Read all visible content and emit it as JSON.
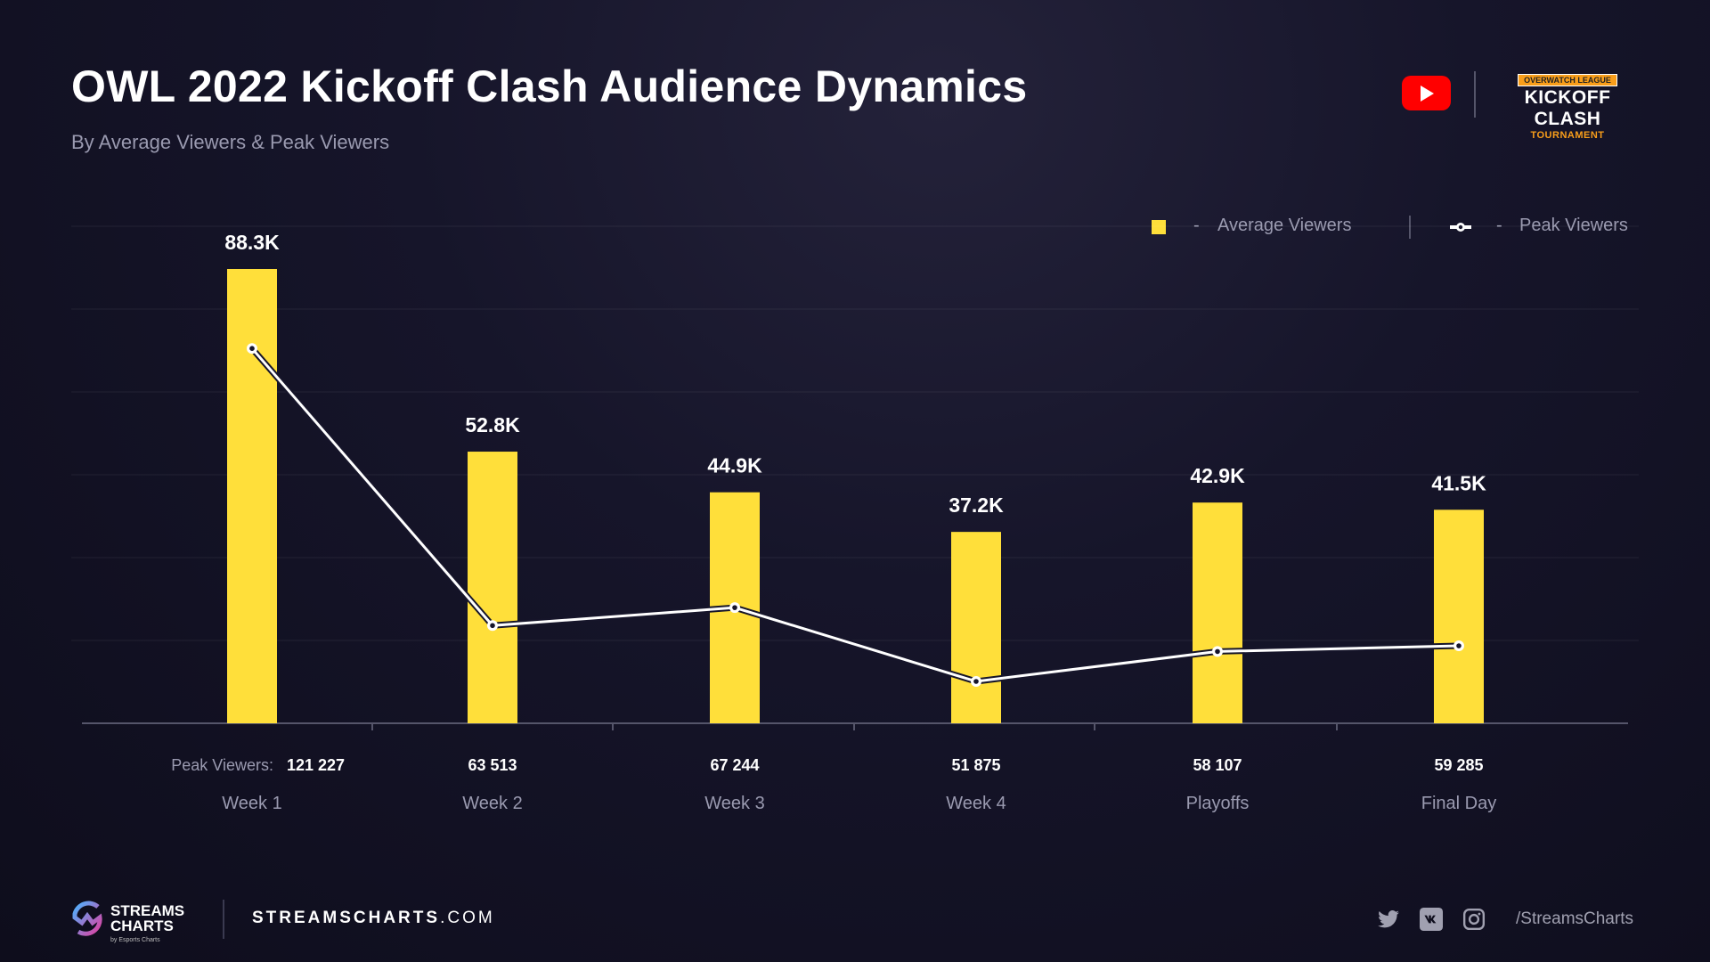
{
  "header": {
    "title": "OWL 2022 Kickoff Clash Audience Dynamics",
    "subtitle": "By Average Viewers & Peak Viewers",
    "platform_icon": "youtube-icon",
    "event_logo": {
      "top": "OVERWATCH LEAGUE",
      "main": "KICKOFF CLASH",
      "sub": "TOURNAMENT"
    }
  },
  "chart_data": {
    "type": "bar+line",
    "categories": [
      "Week 1",
      "Week 2",
      "Week 3",
      "Week 4",
      "Playoffs",
      "Final Day"
    ],
    "series": [
      {
        "name": "Average Viewers",
        "type": "bar",
        "color": "#ffdf3a",
        "values": [
          88300,
          52800,
          44900,
          37200,
          42900,
          41500
        ],
        "labels": [
          "88.3K",
          "52.8K",
          "44.9K",
          "37.2K",
          "42.9K",
          "41.5K"
        ]
      },
      {
        "name": "Peak Viewers",
        "type": "line",
        "color": "#ffffff",
        "values": [
          121227,
          63513,
          67244,
          51875,
          58107,
          59285
        ],
        "labels": [
          "121 227",
          "63 513",
          "67 244",
          "51 875",
          "58 107",
          "59 285"
        ]
      }
    ],
    "peak_prefix": "Peak Viewers:",
    "legend": {
      "position": "top-right",
      "dash": "-"
    },
    "grid": true
  },
  "footer": {
    "brand_line1": "STREAMS",
    "brand_line2": "CHARTS",
    "brand_by": "by Esports Charts",
    "site_bold": "STREAMSCHARTS",
    "site_rest": ".COM",
    "handle": "/StreamsCharts",
    "icons": [
      "twitter-icon",
      "vk-icon",
      "instagram-icon"
    ]
  }
}
